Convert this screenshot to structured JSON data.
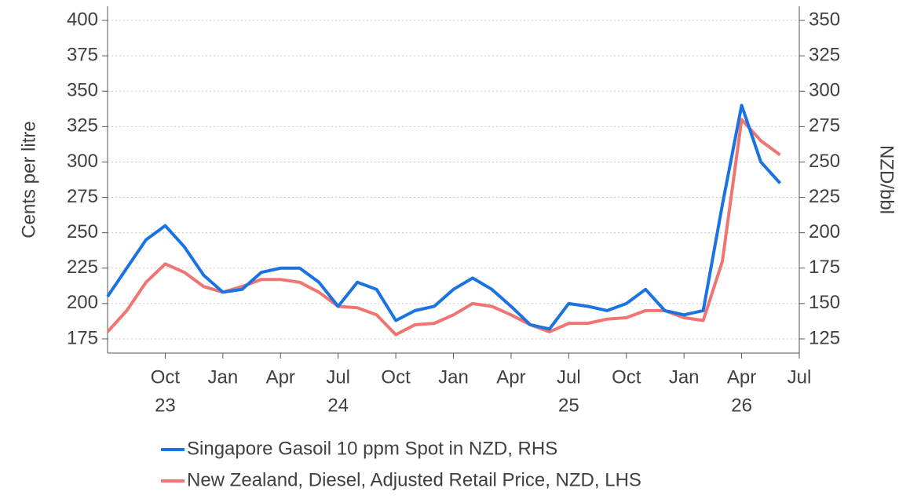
{
  "chart_data": {
    "type": "line",
    "ylabel": "Cents per litre",
    "y2label": "NZD/bbl",
    "x": [
      "2023-07",
      "2023-08",
      "2023-09",
      "2023-10",
      "2023-11",
      "2023-12",
      "2024-01",
      "2024-02",
      "2024-03",
      "2024-04",
      "2024-05",
      "2024-06",
      "2024-07",
      "2024-08",
      "2024-09",
      "2024-10",
      "2024-11",
      "2024-12",
      "2025-01",
      "2025-02",
      "2025-03",
      "2025-04",
      "2025-05",
      "2025-06",
      "2025-07",
      "2025-08",
      "2025-09",
      "2025-10",
      "2025-11",
      "2025-12",
      "2026-01",
      "2026-02",
      "2026-03",
      "2026-04",
      "2026-05",
      "2026-06"
    ],
    "xlim": [
      "2023-07",
      "2026-07"
    ],
    "xticks": [
      {
        "value": "2023-10",
        "label": "Oct",
        "year": "23"
      },
      {
        "value": "2024-01",
        "label": "Jan"
      },
      {
        "value": "2024-04",
        "label": "Apr"
      },
      {
        "value": "2024-07",
        "label": "Jul",
        "year": "24"
      },
      {
        "value": "2024-10",
        "label": "Oct"
      },
      {
        "value": "2025-01",
        "label": "Jan"
      },
      {
        "value": "2025-04",
        "label": "Apr"
      },
      {
        "value": "2025-07",
        "label": "Jul",
        "year": "25"
      },
      {
        "value": "2025-10",
        "label": "Oct"
      },
      {
        "value": "2026-01",
        "label": "Jan"
      },
      {
        "value": "2026-04",
        "label": "Apr",
        "year": "26"
      },
      {
        "value": "2026-07",
        "label": "Jul"
      }
    ],
    "ylim": [
      165,
      410
    ],
    "yticks": [
      175,
      200,
      225,
      250,
      275,
      300,
      325,
      350,
      375,
      400
    ],
    "y2lim": [
      115,
      360
    ],
    "y2ticks": [
      125,
      150,
      175,
      200,
      225,
      250,
      275,
      300,
      325,
      350
    ],
    "grid": true,
    "series": [
      {
        "name": "Singapore Gasoil 10 ppm Spot in NZD, RHS",
        "color": "#1a73e0",
        "axis": "y2",
        "values": [
          155,
          175,
          195,
          205,
          190,
          170,
          158,
          160,
          172,
          175,
          175,
          165,
          148,
          165,
          160,
          138,
          145,
          148,
          160,
          168,
          160,
          148,
          135,
          132,
          150,
          148,
          145,
          150,
          160,
          145,
          142,
          145,
          220,
          290,
          250,
          235
        ]
      },
      {
        "name": "New Zealand, Diesel, Adjusted Retail Price, NZD, LHS",
        "color": "#f07470",
        "values": [
          180,
          195,
          215,
          228,
          222,
          212,
          208,
          212,
          217,
          217,
          215,
          208,
          198,
          197,
          192,
          178,
          185,
          186,
          192,
          200,
          198,
          192,
          185,
          180,
          186,
          186,
          189,
          190,
          195,
          195,
          190,
          188,
          230,
          330,
          315,
          305
        ]
      }
    ]
  }
}
